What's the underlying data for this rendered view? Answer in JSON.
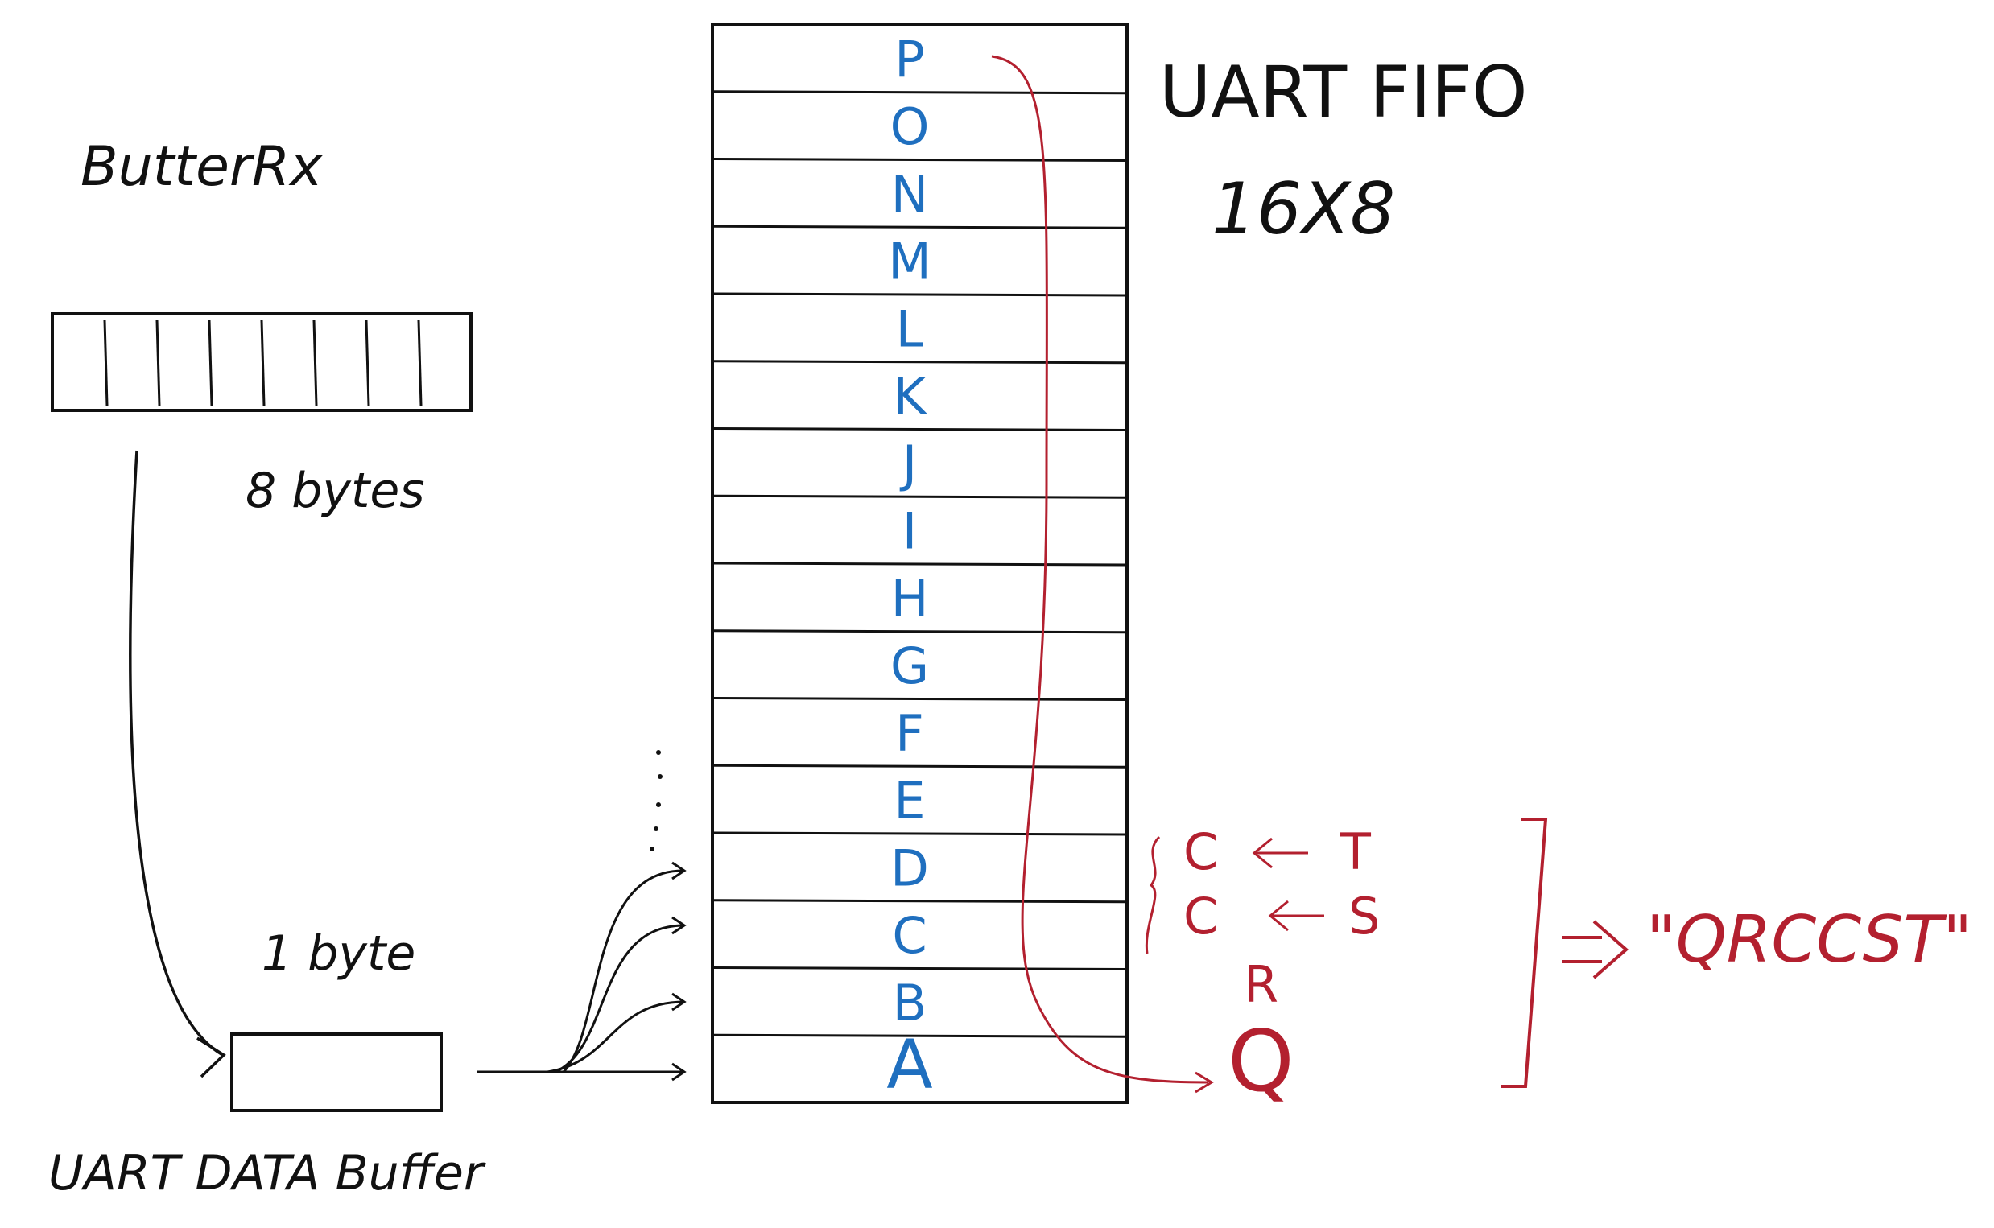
{
  "labels": {
    "buffer_rx": "ButterRx",
    "eight_bytes": "8 bytes",
    "one_byte": "1 byte",
    "uart_data_buffer": "UART DATA Buffer",
    "uart_fifo": "UART FIFO",
    "fifo_size": "16X8",
    "result": "\"QRCCST\""
  },
  "fifo_cells": [
    "P",
    "O",
    "N",
    "M",
    "L",
    "K",
    "J",
    "I",
    "H",
    "G",
    "F",
    "E",
    "D",
    "C",
    "B",
    "A"
  ],
  "read_out": {
    "row1_left": "C",
    "row1_right": "T",
    "row2_left": "C",
    "row2_right": "S",
    "row3": "R",
    "row4": "Q"
  },
  "buffer_rx_cells": 8,
  "colors": {
    "ink": "#111111",
    "fifo_letters": "#1f6fbf",
    "annotations": "#b3202f"
  }
}
